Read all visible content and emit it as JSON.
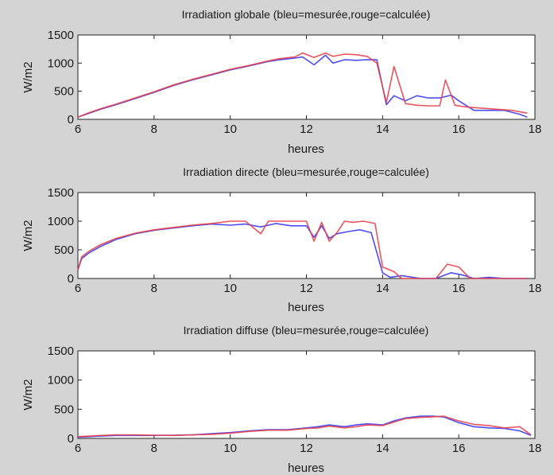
{
  "figure": {
    "background": "#d4d4d4"
  },
  "chart_data": [
    {
      "type": "line",
      "title": "Irradiation globale (bleu=mesurée,rouge=calculée)",
      "xlabel": "heures",
      "ylabel": "W/m2",
      "xlim": [
        6,
        18
      ],
      "ylim": [
        0,
        1500
      ],
      "xticks": [
        "6",
        "8",
        "10",
        "12",
        "14",
        "16",
        "18"
      ],
      "yticks": [
        "0",
        "500",
        "1000",
        "1500"
      ],
      "grid": false,
      "series": [
        {
          "color": "#3a3aef",
          "x": [
            6.0,
            6.3,
            6.6,
            7.0,
            7.5,
            8.0,
            8.5,
            9.0,
            9.5,
            10.0,
            10.5,
            11.0,
            11.3,
            11.7,
            11.9,
            12.2,
            12.5,
            12.7,
            13.0,
            13.3,
            13.6,
            13.85,
            14.1,
            14.3,
            14.6,
            14.9,
            15.2,
            15.5,
            15.8,
            16.0,
            16.4,
            16.8,
            17.2,
            17.6,
            17.8
          ],
          "y": [
            40,
            110,
            180,
            260,
            370,
            480,
            600,
            700,
            790,
            880,
            950,
            1030,
            1060,
            1090,
            1110,
            970,
            1140,
            1000,
            1060,
            1050,
            1060,
            1060,
            260,
            420,
            330,
            420,
            380,
            380,
            430,
            330,
            160,
            160,
            160,
            90,
            40
          ]
        },
        {
          "color": "#e8414a",
          "x": [
            6.0,
            6.3,
            6.6,
            7.0,
            7.5,
            8.0,
            8.5,
            9.0,
            9.5,
            10.0,
            10.5,
            11.0,
            11.3,
            11.7,
            11.9,
            12.2,
            12.5,
            12.7,
            13.0,
            13.3,
            13.6,
            13.85,
            14.1,
            14.3,
            14.6,
            14.9,
            15.2,
            15.5,
            15.65,
            15.9,
            16.2,
            16.6,
            17.0,
            17.4,
            17.8
          ],
          "y": [
            40,
            120,
            190,
            270,
            380,
            490,
            610,
            710,
            800,
            890,
            960,
            1040,
            1080,
            1110,
            1180,
            1100,
            1180,
            1120,
            1160,
            1150,
            1120,
            1000,
            300,
            940,
            280,
            250,
            240,
            240,
            700,
            250,
            220,
            200,
            180,
            160,
            110
          ]
        }
      ]
    },
    {
      "type": "line",
      "title": "Irradiation directe (bleu=mesurée,rouge=calculée)",
      "xlabel": "heures",
      "ylabel": "W/m2",
      "xlim": [
        6,
        18
      ],
      "ylim": [
        0,
        1500
      ],
      "xticks": [
        "6",
        "8",
        "10",
        "12",
        "14",
        "16",
        "18"
      ],
      "yticks": [
        "0",
        "500",
        "1000",
        "1500"
      ],
      "grid": false,
      "series": [
        {
          "color": "#3a3aef",
          "x": [
            6.0,
            6.1,
            6.3,
            6.6,
            7.0,
            7.5,
            8.0,
            8.5,
            9.0,
            9.5,
            10.0,
            10.4,
            10.8,
            11.2,
            11.6,
            12.0,
            12.2,
            12.4,
            12.6,
            12.8,
            13.1,
            13.4,
            13.7,
            14.0,
            14.2,
            14.5,
            15.0,
            15.4,
            15.8,
            16.1,
            16.4,
            16.8,
            17.2,
            17.8
          ],
          "y": [
            150,
            350,
            450,
            560,
            680,
            780,
            840,
            880,
            920,
            950,
            930,
            950,
            900,
            960,
            920,
            920,
            720,
            920,
            700,
            780,
            820,
            850,
            800,
            100,
            20,
            50,
            0,
            0,
            100,
            60,
            0,
            20,
            0,
            0
          ]
        },
        {
          "color": "#e8414a",
          "x": [
            6.0,
            6.1,
            6.3,
            6.6,
            7.0,
            7.5,
            8.0,
            8.5,
            9.0,
            9.5,
            10.0,
            10.4,
            10.8,
            11.0,
            11.2,
            11.6,
            12.0,
            12.2,
            12.4,
            12.6,
            12.8,
            13.0,
            13.2,
            13.5,
            13.8,
            14.0,
            14.3,
            14.5,
            15.0,
            15.4,
            15.7,
            16.0,
            16.3,
            16.7,
            17.2,
            17.8
          ],
          "y": [
            150,
            380,
            480,
            590,
            700,
            790,
            850,
            890,
            930,
            960,
            1000,
            1000,
            780,
            1000,
            1000,
            1000,
            1000,
            650,
            980,
            650,
            800,
            1000,
            980,
            1000,
            960,
            200,
            120,
            0,
            0,
            0,
            250,
            200,
            0,
            0,
            0,
            0
          ]
        }
      ]
    },
    {
      "type": "line",
      "title": "Irradiation diffuse (bleu=mesurée,rouge=calculée)",
      "xlabel": "heures",
      "ylabel": "W/m2",
      "xlim": [
        6,
        18
      ],
      "ylim": [
        0,
        1500
      ],
      "xticks": [
        "6",
        "8",
        "10",
        "12",
        "14",
        "16",
        "18"
      ],
      "yticks": [
        "0",
        "500",
        "1000",
        "1500"
      ],
      "grid": false,
      "series": [
        {
          "color": "#3a3aef",
          "x": [
            6.0,
            6.3,
            6.6,
            7.0,
            7.5,
            8.0,
            8.5,
            9.0,
            9.5,
            10.0,
            10.5,
            11.0,
            11.5,
            12.0,
            12.3,
            12.6,
            13.0,
            13.3,
            13.6,
            14.0,
            14.3,
            14.6,
            15.0,
            15.3,
            15.6,
            16.0,
            16.4,
            16.8,
            17.2,
            17.6,
            17.9
          ],
          "y": [
            20,
            30,
            40,
            50,
            50,
            50,
            55,
            60,
            80,
            100,
            130,
            150,
            150,
            180,
            200,
            230,
            200,
            230,
            250,
            230,
            300,
            350,
            380,
            380,
            370,
            270,
            200,
            180,
            170,
            130,
            50
          ]
        },
        {
          "color": "#e8414a",
          "x": [
            6.0,
            6.3,
            6.6,
            7.0,
            7.5,
            8.0,
            8.5,
            9.0,
            9.5,
            10.0,
            10.5,
            11.0,
            11.5,
            12.0,
            12.3,
            12.6,
            13.0,
            13.3,
            13.6,
            14.0,
            14.3,
            14.6,
            15.0,
            15.3,
            15.6,
            16.0,
            16.4,
            16.8,
            17.2,
            17.6,
            17.9
          ],
          "y": [
            30,
            40,
            50,
            60,
            60,
            55,
            50,
            60,
            70,
            90,
            120,
            140,
            140,
            170,
            180,
            210,
            180,
            200,
            230,
            220,
            280,
            340,
            360,
            370,
            380,
            300,
            240,
            220,
            180,
            200,
            60
          ]
        }
      ]
    }
  ]
}
